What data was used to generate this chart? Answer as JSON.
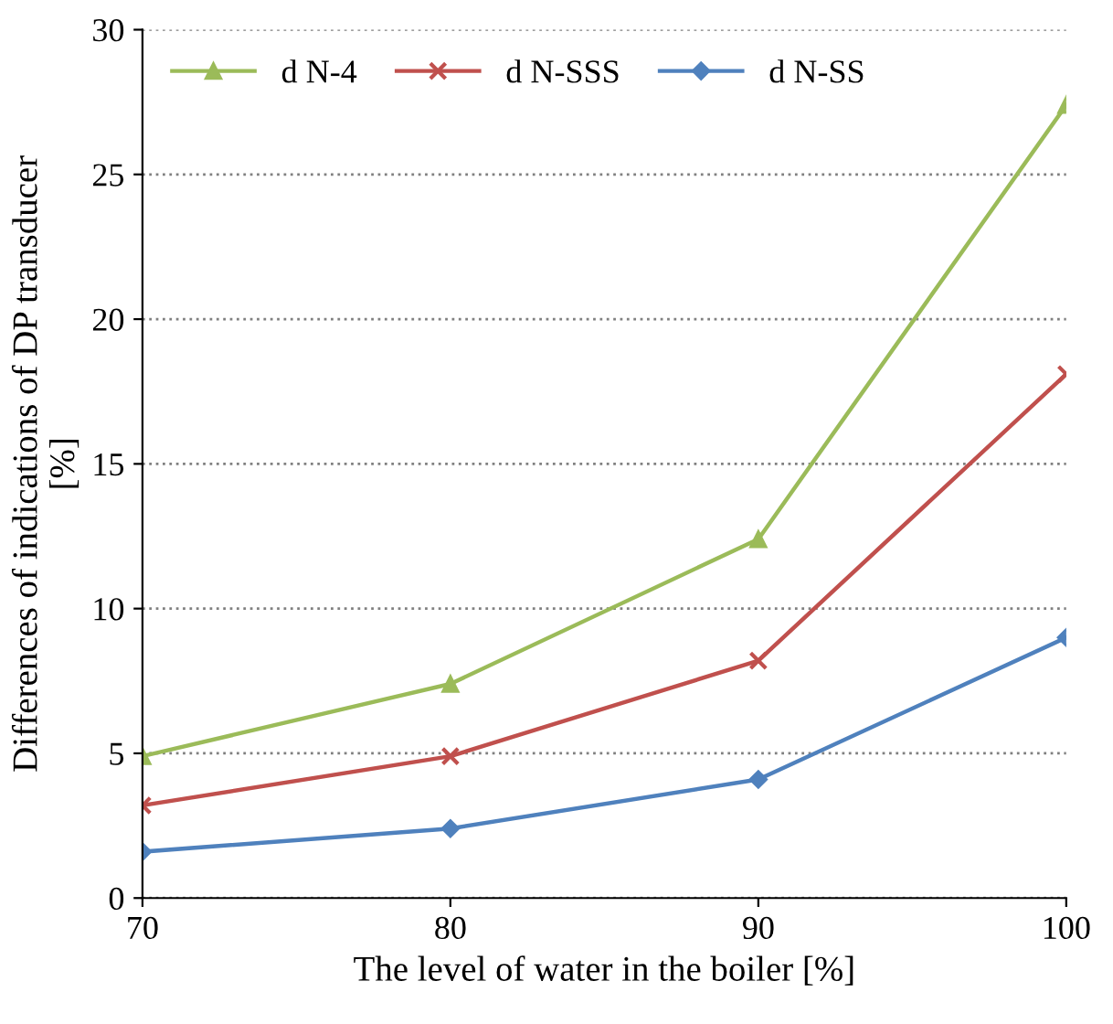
{
  "chart_data": {
    "type": "line",
    "xlabel": "The level of water in the boiler [%]",
    "ylabel": "Differences of indications of DP transducer\n[%]",
    "x": [
      70,
      80,
      90,
      100
    ],
    "series": [
      {
        "name": "d N-4",
        "color": "#9bbb59",
        "marker": "triangle",
        "values": [
          4.9,
          7.4,
          12.4,
          27.4
        ]
      },
      {
        "name": "d N-SSS",
        "color": "#c0504d",
        "marker": "cross",
        "values": [
          3.2,
          4.9,
          8.2,
          18.1
        ]
      },
      {
        "name": "d N-SS",
        "color": "#4f81bd",
        "marker": "diamond",
        "values": [
          1.6,
          2.4,
          4.1,
          9.0
        ]
      }
    ],
    "xlim": [
      70,
      100
    ],
    "xticks": [
      70,
      80,
      90,
      100
    ],
    "ylim": [
      0,
      30
    ],
    "yticks": [
      0,
      5,
      10,
      15,
      20,
      25,
      30
    ],
    "grid": "y",
    "legend": "top left",
    "line_style": "solid"
  }
}
